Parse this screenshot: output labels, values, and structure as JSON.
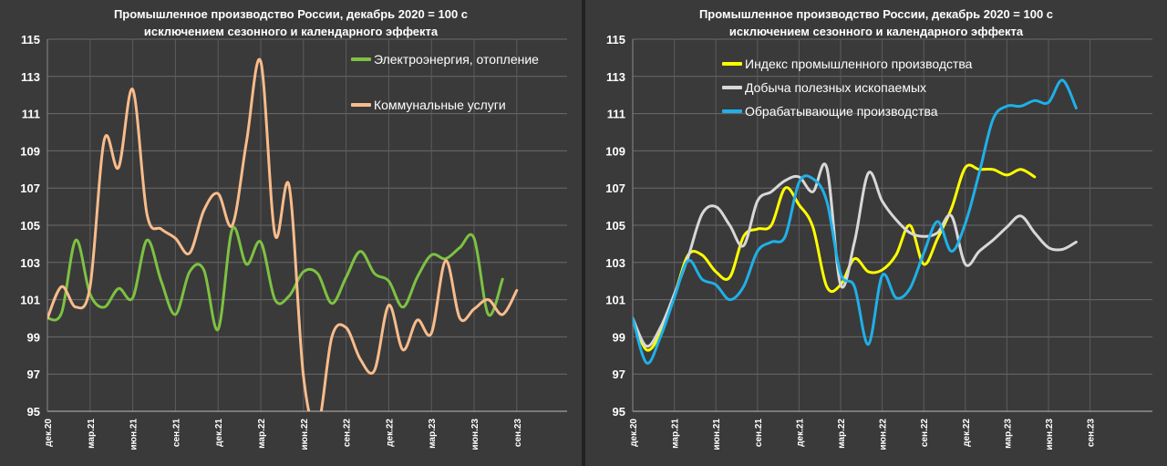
{
  "chart_data": [
    {
      "type": "line",
      "title": "Промышленное производство России, декабрь 2020 = 100 с",
      "subtitle": "исключением сезонного и календарного эффекта",
      "ylim": [
        95,
        115
      ],
      "yticks": [
        "95",
        "97",
        "99",
        "101",
        "103",
        "105",
        "107",
        "109",
        "111",
        "113",
        "115"
      ],
      "tick_labels": [
        "дек.20",
        "мар.21",
        "июн.21",
        "сен.21",
        "дек.21",
        "мар.22",
        "июн.22",
        "сен.22",
        "дек.22",
        "мар.23",
        "июн.23",
        "сен.23"
      ],
      "grid": true,
      "legend_position": "top-right",
      "series": [
        {
          "name": "Электроэнергия, отопление",
          "color": "#7dc242",
          "values": [
            100.0,
            100.3,
            104.2,
            101.3,
            100.6,
            101.6,
            101.1,
            104.2,
            102.0,
            100.2,
            102.5,
            102.6,
            99.4,
            104.8,
            102.9,
            104.1,
            101.0,
            101.2,
            102.5,
            102.4,
            100.8,
            102.2,
            103.6,
            102.4,
            102.0,
            100.6,
            102.2,
            103.4,
            103.2,
            103.8,
            104.3,
            100.2,
            102.1
          ]
        },
        {
          "name": "Коммунальные услуги",
          "color": "#f8bc8c",
          "values": [
            100.0,
            101.7,
            100.6,
            101.7,
            109.6,
            108.1,
            112.3,
            105.6,
            104.8,
            104.3,
            103.5,
            105.8,
            106.7,
            105.0,
            109.5,
            113.8,
            104.5,
            107.1,
            96.9,
            94.2,
            99.0,
            99.5,
            97.8,
            97.2,
            100.7,
            98.3,
            99.9,
            99.2,
            103.1,
            100.0,
            100.5,
            101.0,
            100.2,
            101.5
          ]
        }
      ]
    },
    {
      "type": "line",
      "title": "Промышленное производство России, декабрь 2020 = 100 с",
      "subtitle": "исключением сезонного и календарного эффекта",
      "ylim": [
        95,
        115
      ],
      "yticks": [
        "95",
        "97",
        "99",
        "101",
        "103",
        "105",
        "107",
        "109",
        "111",
        "113",
        "115"
      ],
      "tick_labels": [
        "дек.20",
        "мар.21",
        "июн.21",
        "сен.21",
        "дек.21",
        "мар.22",
        "июн.22",
        "сен.22",
        "дек.22",
        "мар.23",
        "июн.23",
        "сен.23"
      ],
      "grid": true,
      "legend_position": "top-left",
      "series": [
        {
          "name": "Индекс промышленного производства",
          "color": "#ffff00",
          "values": [
            100.0,
            98.3,
            99.2,
            101.2,
            103.4,
            103.4,
            102.5,
            102.2,
            104.4,
            104.8,
            105.0,
            107.0,
            106.1,
            104.9,
            101.7,
            101.8,
            103.2,
            102.5,
            102.6,
            103.4,
            105.0,
            102.9,
            104.3,
            105.9,
            108.1,
            108.0,
            108.0,
            107.7,
            108.0,
            107.6
          ]
        },
        {
          "name": "Добыча полезных ископаемых",
          "color": "#d8d8d8",
          "values": [
            100.0,
            98.5,
            99.5,
            101.3,
            103.3,
            105.6,
            106.0,
            105.0,
            103.9,
            106.3,
            106.8,
            107.4,
            107.6,
            106.8,
            108.1,
            101.8,
            104.1,
            107.8,
            106.3,
            105.3,
            104.6,
            104.4,
            104.6,
            105.5,
            102.9,
            103.6,
            104.2,
            104.9,
            105.5,
            104.6,
            103.8,
            103.7,
            104.1
          ]
        },
        {
          "name": "Обрабатывающие производства",
          "color": "#1fb0e8",
          "values": [
            100.0,
            97.6,
            99.0,
            101.1,
            103.1,
            102.1,
            101.8,
            101.0,
            101.7,
            103.6,
            104.1,
            104.4,
            107.3,
            107.5,
            106.3,
            102.4,
            101.7,
            98.6,
            102.3,
            101.1,
            101.6,
            103.5,
            105.2,
            103.6,
            105.1,
            107.8,
            110.7,
            111.4,
            111.4,
            111.7,
            111.6,
            112.8,
            111.3
          ]
        }
      ]
    }
  ]
}
